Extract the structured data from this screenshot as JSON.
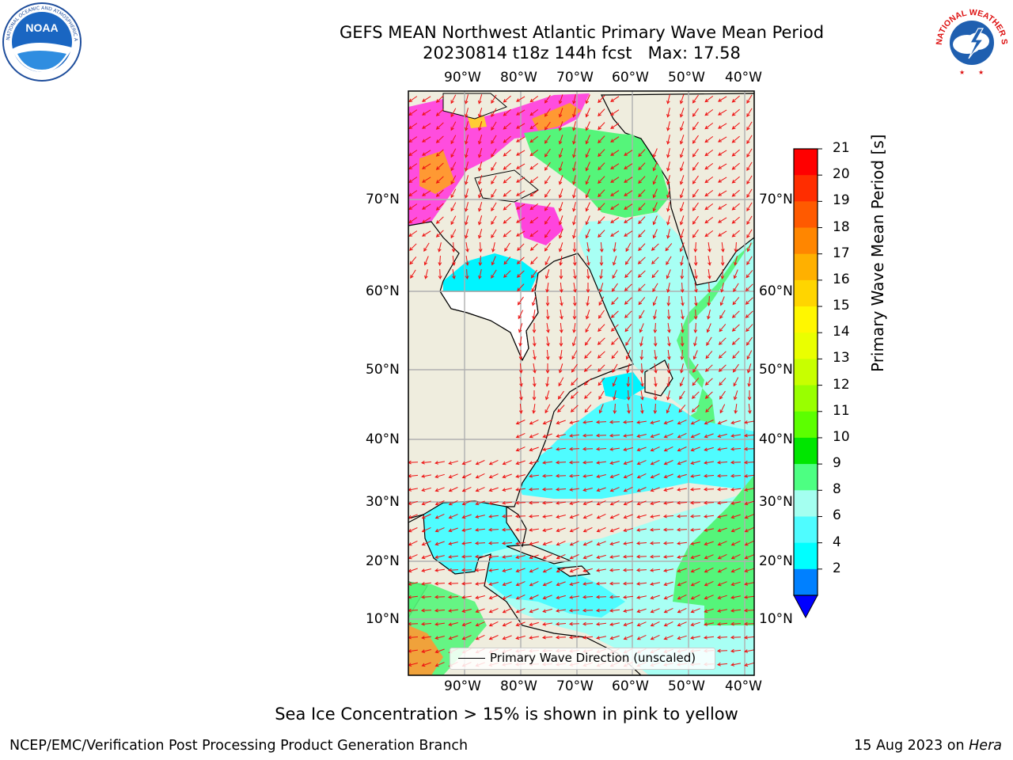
{
  "title": {
    "line1": "GEFS MEAN Northwest Atlantic Primary Wave Mean Period",
    "line2": "20230814 t18z 144h fcst   Max: 17.58"
  },
  "map": {
    "lon_labels": [
      "90°W",
      "80°W",
      "70°W",
      "60°W",
      "50°W",
      "40°W"
    ],
    "lat_labels": [
      "70°N",
      "60°N",
      "50°N",
      "40°N",
      "30°N",
      "20°N",
      "10°N"
    ],
    "legend": "Primary Wave Direction (unscaled)",
    "colors": {
      "land": "#efedde",
      "ice_pink": "#ff44dd",
      "ice_orange": "#ff9933",
      "grid": "#b0b0b0",
      "arrows": "#ee1111"
    }
  },
  "colorbar": {
    "title": "Primary Wave Mean Period [s]",
    "ticks": [
      "21",
      "20",
      "19",
      "18",
      "17",
      "16",
      "15",
      "14",
      "13",
      "12",
      "11",
      "10",
      "9",
      "8",
      "6",
      "4",
      "2"
    ],
    "colors": [
      "#ff0000",
      "#ff2d00",
      "#ff5a00",
      "#ff8600",
      "#ffb000",
      "#ffd500",
      "#fff700",
      "#eaff00",
      "#c8ff00",
      "#99ff00",
      "#5cff00",
      "#00e600",
      "#4dff82",
      "#a4fff0",
      "#4ffcff",
      "#00ffff",
      "#0080ff"
    ],
    "extend_color": "#0000ff"
  },
  "logos": {
    "noaa": "NOAA",
    "nws_ring": "NATIONAL WEATHER SERVICE"
  },
  "note": "Sea Ice Concentration > 15% is shown in pink to yellow",
  "footer": {
    "left": "NCEP/EMC/Verification Post Processing Product Generation Branch",
    "right_date": "15 Aug 2023 on ",
    "right_machine": "Hera"
  }
}
